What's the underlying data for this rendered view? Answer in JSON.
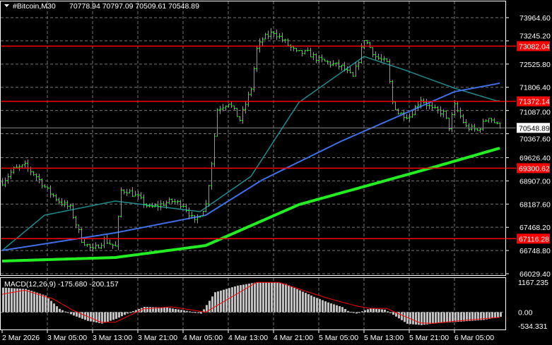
{
  "header": {
    "symbol": "#Bitcoin,M30",
    "ohlc": "70778.94 70797.09 70509.61 70548.89"
  },
  "colors": {
    "background": "#000000",
    "grid": "#777777",
    "candle": "#00ff00",
    "ma_fast": "#1e8c8c",
    "ma_mid": "#3f6fe6",
    "ma_slow": "#22ee22",
    "level_line": "#ff0000",
    "macd_hist": "#c0c0c0",
    "macd_signal": "#ff0000"
  },
  "chart_data": [
    {
      "type": "candlestick",
      "timeframe": "M30",
      "x_tick_labels": [
        "2 Mar 2026",
        "3 Mar 05:00",
        "3 Mar 13:00",
        "3 Mar 21:00",
        "4 Mar 05:00",
        "4 Mar 13:00",
        "4 Mar 21:00",
        "5 Mar 05:00",
        "5 Mar 13:00",
        "5 Mar 21:00",
        "6 Mar 05:00"
      ],
      "y_tick_labels": [
        "73964.60",
        "73245.20",
        "72525.80",
        "71806.40",
        "71087.00",
        "70367.60",
        "69626.40",
        "68907.00",
        "68187.60",
        "67468.20",
        "66748.80",
        "66029.40"
      ],
      "ylim": [
        66029.4,
        73964.6
      ],
      "grid": true,
      "last_price": "70548.89",
      "close_keypoints": [
        [
          0,
          68871
        ],
        [
          4,
          69265
        ],
        [
          8,
          69374
        ],
        [
          12,
          69046
        ],
        [
          16,
          68609
        ],
        [
          20,
          68281
        ],
        [
          24,
          68063
        ],
        [
          28,
          67079
        ],
        [
          32,
          66751
        ],
        [
          36,
          67079
        ],
        [
          40,
          66860
        ],
        [
          42,
          68609
        ],
        [
          44,
          68609
        ],
        [
          48,
          68390
        ],
        [
          52,
          68063
        ],
        [
          56,
          68172
        ],
        [
          60,
          68281
        ],
        [
          64,
          68172
        ],
        [
          68,
          67625
        ],
        [
          72,
          68172
        ],
        [
          74,
          69483
        ],
        [
          76,
          71122
        ],
        [
          80,
          71341
        ],
        [
          84,
          70795
        ],
        [
          88,
          71779
        ],
        [
          90,
          72981
        ],
        [
          92,
          73309
        ],
        [
          96,
          73527
        ],
        [
          100,
          73200
        ],
        [
          104,
          72872
        ],
        [
          108,
          72872
        ],
        [
          112,
          72653
        ],
        [
          116,
          72544
        ],
        [
          120,
          72435
        ],
        [
          124,
          72107
        ],
        [
          126,
          72653
        ],
        [
          128,
          73309
        ],
        [
          132,
          72762
        ],
        [
          136,
          72544
        ],
        [
          138,
          71341
        ],
        [
          140,
          71013
        ],
        [
          144,
          70904
        ],
        [
          148,
          71450
        ],
        [
          152,
          71122
        ],
        [
          156,
          71013
        ],
        [
          158,
          70576
        ],
        [
          160,
          71232
        ],
        [
          164,
          70576
        ],
        [
          168,
          70467
        ],
        [
          172,
          70904
        ],
        [
          176,
          70548.89
        ]
      ],
      "moving_averages": [
        {
          "color": "#1e8c8c",
          "keypoints": [
            [
              0,
              66751
            ],
            [
              15,
              67844
            ],
            [
              40,
              68281
            ],
            [
              70,
              67953
            ],
            [
              88,
              69046
            ],
            [
              105,
              71341
            ],
            [
              128,
              72762
            ],
            [
              143,
              72325
            ],
            [
              160,
              71779
            ],
            [
              175,
              71385
            ]
          ]
        },
        {
          "color": "#3f6fe6",
          "keypoints": [
            [
              0,
              66751
            ],
            [
              40,
              67297
            ],
            [
              72,
              67844
            ],
            [
              92,
              68937
            ],
            [
              120,
              70139
            ],
            [
              140,
              70904
            ],
            [
              160,
              71670
            ],
            [
              176,
              71932
            ]
          ]
        },
        {
          "color": "#22ee22",
          "keypoints": [
            [
              0,
              66423
            ],
            [
              40,
              66532
            ],
            [
              72,
              66904
            ],
            [
              105,
              68172
            ],
            [
              150,
              69265
            ],
            [
              176,
              69921
            ]
          ]
        }
      ],
      "levels": [
        {
          "value": 73082.04,
          "label": "73082.04"
        },
        {
          "value": 71372.14,
          "label": "71372.14"
        },
        {
          "value": 69300.62,
          "label": "69300.62"
        },
        {
          "value": 67116.28,
          "label": "67116.28"
        }
      ]
    },
    {
      "type": "bar+line",
      "title": "MACD(12,26,9) -175.680 -200.157",
      "y_tick_labels": [
        "1167.235",
        "0.00",
        "-534.331"
      ],
      "ylim": [
        -534.331,
        1167.235
      ],
      "histogram_keypoints": [
        [
          0,
          958
        ],
        [
          8,
          906
        ],
        [
          15,
          648
        ],
        [
          20,
          130
        ],
        [
          25,
          -130
        ],
        [
          30,
          -337
        ],
        [
          35,
          -440
        ],
        [
          40,
          -259
        ],
        [
          45,
          0
        ],
        [
          50,
          207
        ],
        [
          58,
          181
        ],
        [
          65,
          52
        ],
        [
          70,
          -52
        ],
        [
          75,
          777
        ],
        [
          83,
          1036
        ],
        [
          90,
          1167
        ],
        [
          96,
          1167
        ],
        [
          100,
          1100
        ],
        [
          105,
          850
        ],
        [
          110,
          600
        ],
        [
          115,
          380
        ],
        [
          120,
          200
        ],
        [
          122,
          50
        ],
        [
          125,
          -50
        ],
        [
          128,
          80
        ],
        [
          130,
          150
        ],
        [
          135,
          100
        ],
        [
          138,
          -100
        ],
        [
          143,
          -450
        ],
        [
          148,
          -500
        ],
        [
          153,
          -430
        ],
        [
          160,
          -380
        ],
        [
          170,
          -300
        ],
        [
          176,
          -176
        ]
      ],
      "signal_keypoints": [
        [
          0,
          699
        ],
        [
          8,
          855
        ],
        [
          18,
          518
        ],
        [
          25,
          78
        ],
        [
          35,
          -389
        ],
        [
          40,
          -389
        ],
        [
          50,
          130
        ],
        [
          60,
          207
        ],
        [
          72,
          0
        ],
        [
          80,
          518
        ],
        [
          90,
          1160
        ],
        [
          98,
          1160
        ],
        [
          105,
          900
        ],
        [
          115,
          550
        ],
        [
          125,
          250
        ],
        [
          130,
          150
        ],
        [
          136,
          150
        ],
        [
          140,
          -50
        ],
        [
          148,
          -420
        ],
        [
          153,
          -430
        ],
        [
          160,
          -350
        ],
        [
          176,
          -200
        ]
      ]
    }
  ]
}
